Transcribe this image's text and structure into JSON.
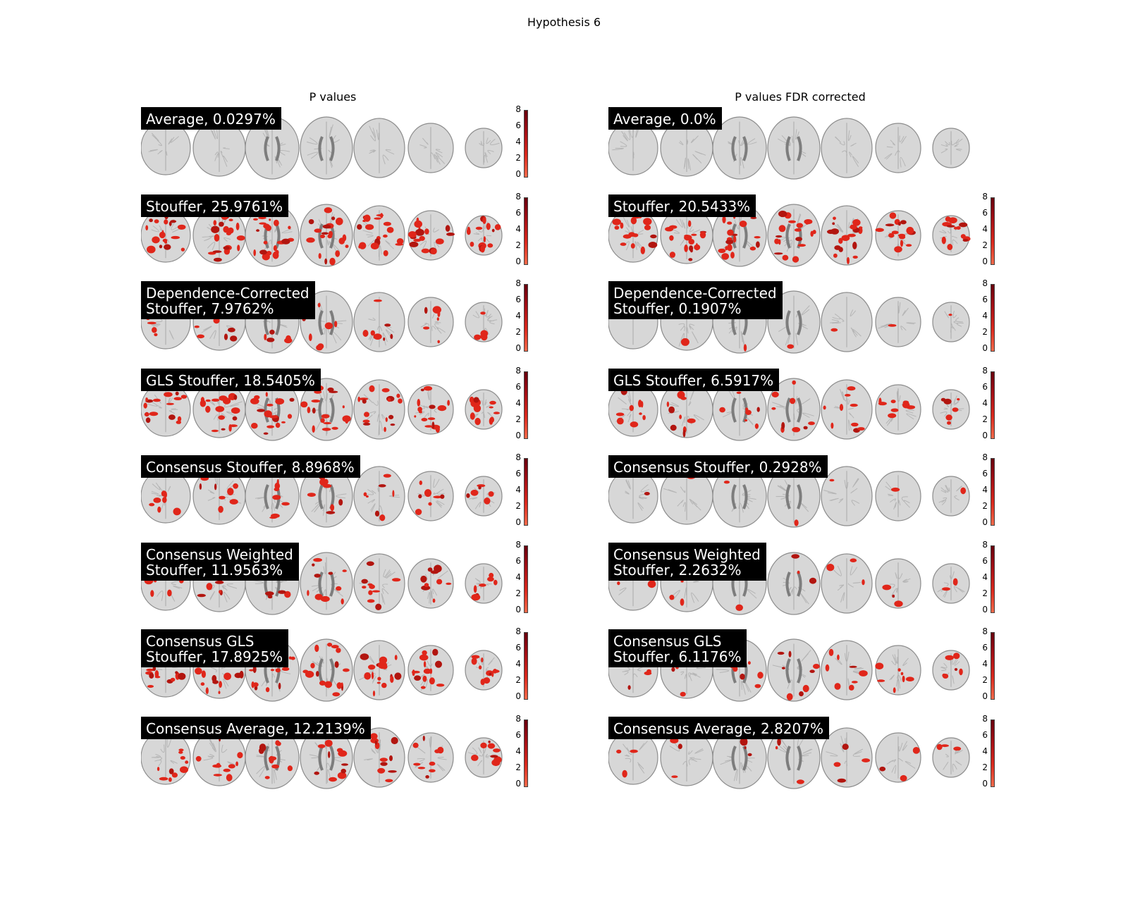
{
  "title": "Hypothesis 6",
  "columns": [
    {
      "title": "P values",
      "panels": [
        {
          "label": "Average, 0.0297%",
          "activation": 0.02
        },
        {
          "label": "Stouffer, 25.9761%",
          "activation": 0.85
        },
        {
          "label": "Dependence-Corrected\nStouffer, 7.9762%",
          "activation": 0.32
        },
        {
          "label": "GLS Stouffer, 18.5405%",
          "activation": 0.75
        },
        {
          "label": "Consensus Stouffer, 8.8968%",
          "activation": 0.35
        },
        {
          "label": "Consensus Weighted\nStouffer, 11.9563%",
          "activation": 0.45
        },
        {
          "label": "Consensus GLS\nStouffer, 17.8925%",
          "activation": 0.72
        },
        {
          "label": "Consensus Average, 12.2139%",
          "activation": 0.48
        }
      ]
    },
    {
      "title": "P values FDR corrected",
      "panels": [
        {
          "label": "Average, 0.0%",
          "activation": 0.0
        },
        {
          "label": "Stouffer, 20.5433%",
          "activation": 0.8
        },
        {
          "label": "Dependence-Corrected\nStouffer, 0.1907%",
          "activation": 0.05
        },
        {
          "label": "GLS Stouffer, 6.5917%",
          "activation": 0.4
        },
        {
          "label": "Consensus Stouffer, 0.2928%",
          "activation": 0.05
        },
        {
          "label": "Consensus Weighted\nStouffer, 2.2632%",
          "activation": 0.15
        },
        {
          "label": "Consensus GLS\nStouffer, 6.1176%",
          "activation": 0.35
        },
        {
          "label": "Consensus Average, 2.8207%",
          "activation": 0.16
        }
      ]
    }
  ],
  "colorbar_ticks": [
    "8",
    "6",
    "4",
    "2",
    "0"
  ],
  "colors": {
    "brain_fill": "#d7d7d7",
    "brain_edge": "#8c8c8c",
    "activation": "#e0261a",
    "activation_dark": "#b2150f",
    "cbar_top": "#67000d",
    "cbar_bottom": "#f06a4a"
  }
}
